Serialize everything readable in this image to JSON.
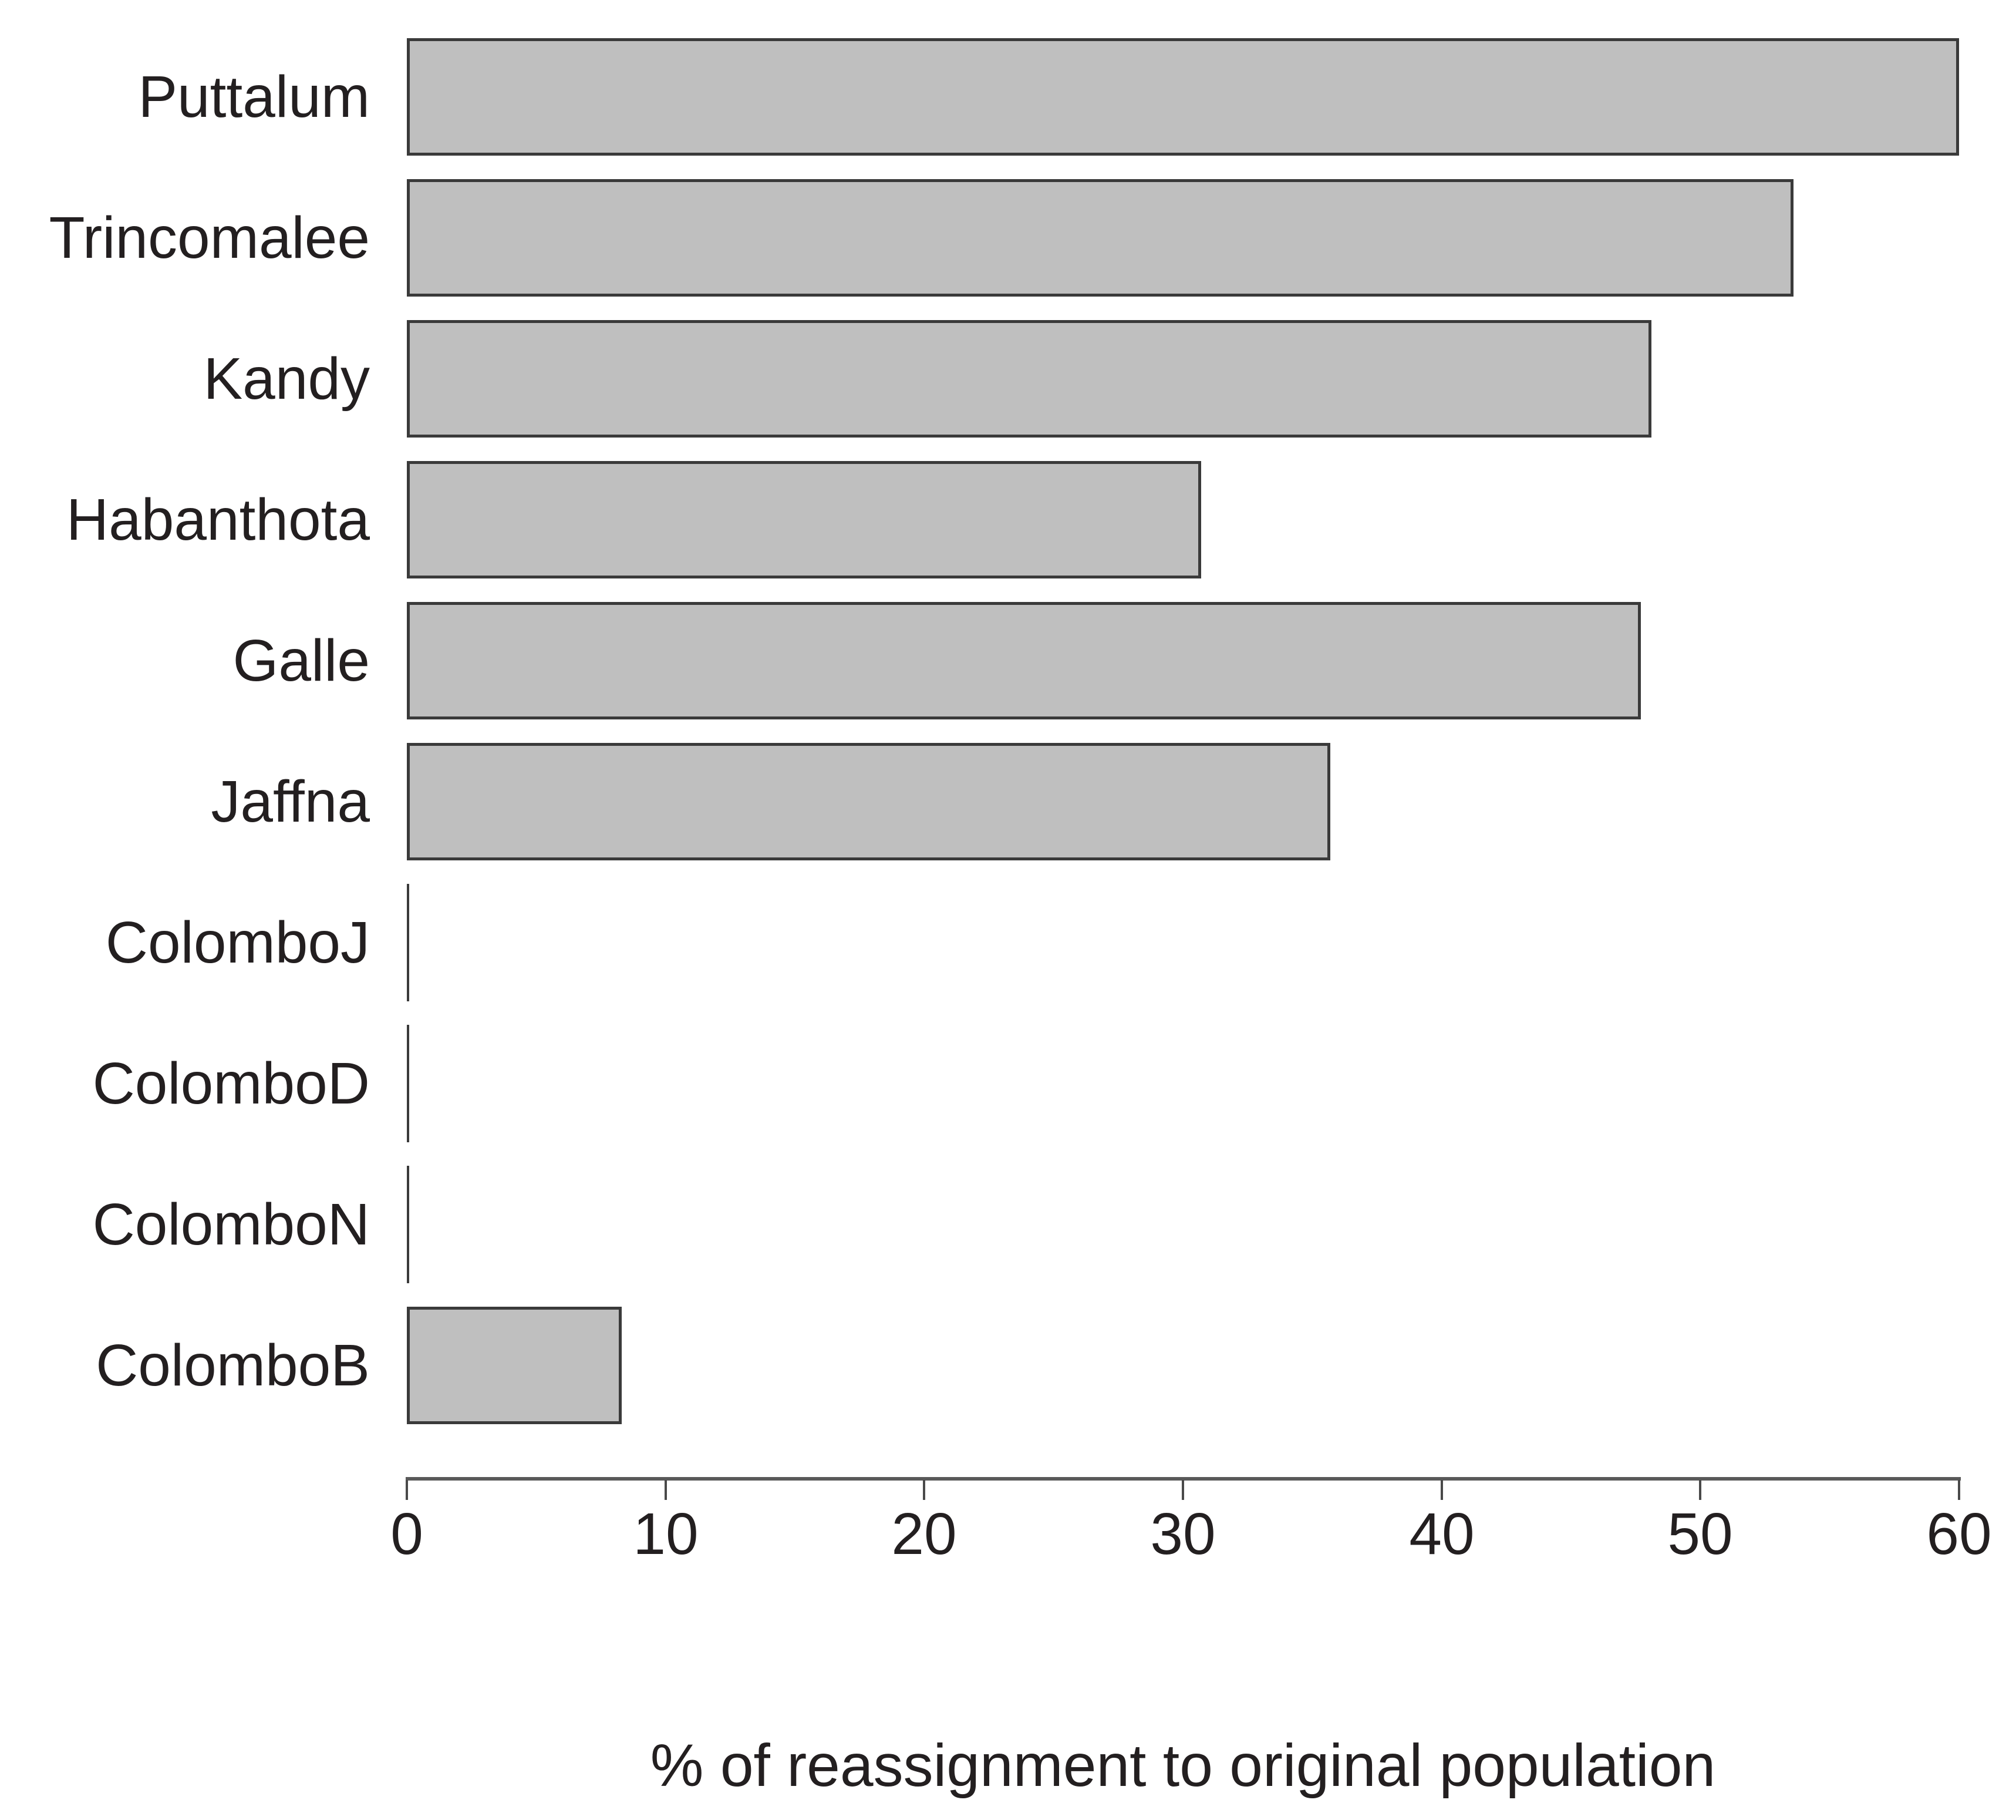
{
  "chart_data": {
    "type": "bar",
    "orientation": "horizontal",
    "title": "",
    "xlabel": "% of reassignment to original population",
    "ylabel": "",
    "xlim": [
      0,
      60
    ],
    "xticks": [
      0,
      10,
      20,
      30,
      40,
      50,
      60
    ],
    "grid": false,
    "legend": false,
    "categories": [
      "Puttalum",
      "Trincomalee",
      "Kandy",
      "Habanthota",
      "Galle",
      "Jaffna",
      "ColomboJ",
      "ColomboD",
      "ColomboN",
      "ColomboB"
    ],
    "values": [
      60,
      53.6,
      48.1,
      30.7,
      47.7,
      35.7,
      0,
      0,
      0,
      8.3
    ],
    "colors": {
      "bar_fill": "#bfbfbf",
      "bar_border": "#3a3a3a",
      "axis_line": "#595959",
      "tick": "#4a4a4a",
      "text": "#231f20"
    }
  }
}
